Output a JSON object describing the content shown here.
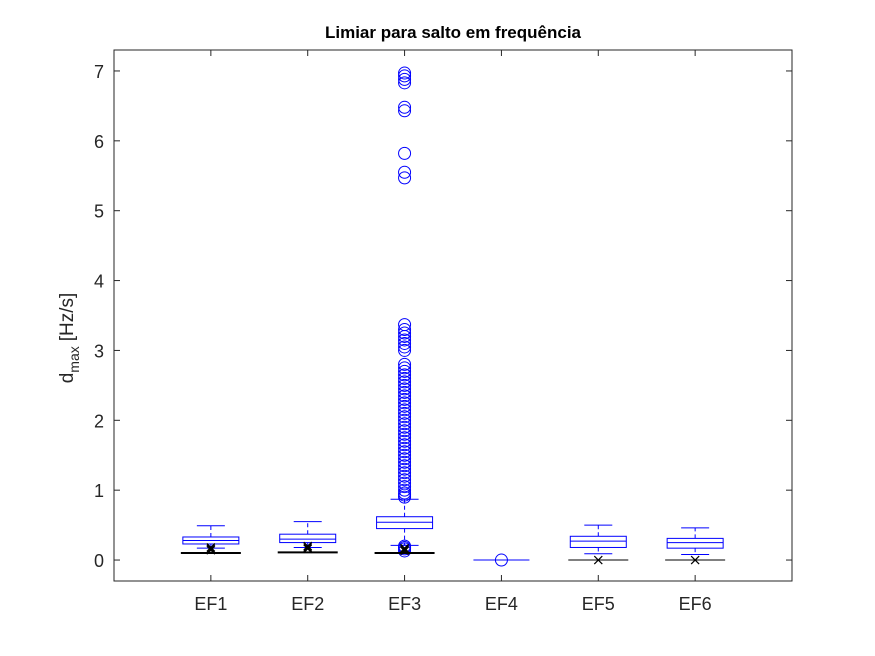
{
  "chart_data": {
    "type": "box",
    "title": "Limiar para salto em frequência",
    "xlabel": "",
    "ylabel": {
      "main": "d",
      "subscript": "max",
      "unit": "[Hz/s]"
    },
    "ylim": [
      -0.3,
      7.3
    ],
    "yticks": [
      0,
      1,
      2,
      3,
      4,
      5,
      6,
      7
    ],
    "grid": false,
    "legend": "none",
    "colors": {
      "box": "#0000FF",
      "outlier": "#0000FF",
      "line": "#000000",
      "axis": "#262626"
    },
    "categories": [
      "EF1",
      "EF2",
      "EF3",
      "EF4",
      "EF5",
      "EF6"
    ],
    "boxes": [
      {
        "name": "EF1",
        "whisker_low": 0.17,
        "q1": 0.23,
        "median": 0.28,
        "q3": 0.33,
        "whisker_high": 0.49,
        "outliers": []
      },
      {
        "name": "EF2",
        "whisker_low": 0.18,
        "q1": 0.25,
        "median": 0.3,
        "q3": 0.37,
        "whisker_high": 0.55,
        "outliers": []
      },
      {
        "name": "EF3",
        "whisker_low": 0.21,
        "q1": 0.45,
        "median": 0.54,
        "q3": 0.62,
        "whisker_high": 0.87,
        "outliers": [
          0.13,
          0.16,
          0.18,
          0.2,
          0.9,
          0.93,
          0.96,
          1.0,
          1.05,
          1.1,
          1.15,
          1.2,
          1.25,
          1.3,
          1.35,
          1.4,
          1.45,
          1.5,
          1.55,
          1.6,
          1.65,
          1.7,
          1.75,
          1.8,
          1.85,
          1.9,
          1.95,
          2.0,
          2.05,
          2.1,
          2.15,
          2.2,
          2.25,
          2.3,
          2.35,
          2.4,
          2.45,
          2.5,
          2.55,
          2.6,
          2.65,
          2.7,
          2.75,
          2.8,
          3.0,
          3.05,
          3.1,
          3.15,
          3.2,
          3.25,
          3.3,
          3.37,
          5.47,
          5.55,
          5.82,
          6.43,
          6.48,
          6.83,
          6.88,
          6.93,
          6.97
        ]
      },
      {
        "name": "EF4",
        "whisker_low": 0.0,
        "q1": 0.0,
        "median": 0.0,
        "q3": 0.0,
        "whisker_high": 0.0,
        "outliers": [
          0.0
        ]
      },
      {
        "name": "EF5",
        "whisker_low": 0.09,
        "q1": 0.18,
        "median": 0.27,
        "q3": 0.34,
        "whisker_high": 0.5,
        "outliers": []
      },
      {
        "name": "EF6",
        "whisker_low": 0.08,
        "q1": 0.17,
        "median": 0.25,
        "q3": 0.31,
        "whisker_high": 0.46,
        "outliers": []
      }
    ],
    "black_series": [
      {
        "name": "EF1",
        "line": 0.1,
        "markers": [
          0.14,
          0.16,
          0.18
        ]
      },
      {
        "name": "EF2",
        "line": 0.11,
        "markers": [
          0.16,
          0.18,
          0.2
        ]
      },
      {
        "name": "EF3",
        "line": 0.1,
        "markers": [
          0.13,
          0.15,
          0.17
        ]
      },
      {
        "name": "EF4",
        "line": null,
        "markers": []
      },
      {
        "name": "EF5",
        "line": 0.0,
        "markers": [
          0.0
        ]
      },
      {
        "name": "EF6",
        "line": 0.0,
        "markers": [
          0.0
        ]
      }
    ]
  }
}
